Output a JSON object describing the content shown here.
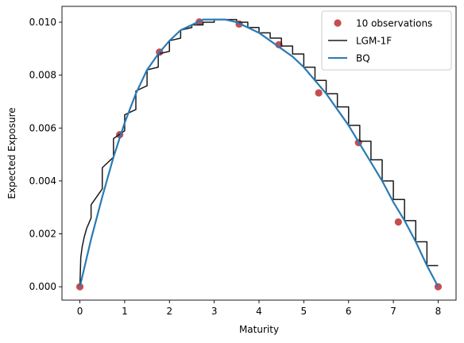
{
  "chart_data": {
    "type": "line",
    "xlabel": "Maturity",
    "ylabel": "Expected Exposure",
    "xlim": [
      -0.4,
      8.4
    ],
    "ylim": [
      -0.000505,
      0.0106
    ],
    "x_ticks": [
      0,
      1,
      2,
      3,
      4,
      5,
      6,
      7,
      8
    ],
    "x_tick_labels": [
      "0",
      "1",
      "2",
      "3",
      "4",
      "5",
      "6",
      "7",
      "8"
    ],
    "y_ticks": [
      0,
      0.002,
      0.004,
      0.006,
      0.008,
      0.01
    ],
    "y_tick_labels": [
      "0.000",
      "0.002",
      "0.004",
      "0.006",
      "0.008",
      "0.010"
    ],
    "grid": false,
    "legend_position": "top-right",
    "series": [
      {
        "name": "10 observations",
        "kind": "scatter",
        "color": "#c44e52",
        "x": [
          0.0,
          0.889,
          1.778,
          2.667,
          3.556,
          4.444,
          5.333,
          6.222,
          7.111,
          8.0
        ],
        "y": [
          0.0,
          0.00575,
          0.00887,
          0.01001,
          0.00993,
          0.00915,
          0.00733,
          0.00545,
          0.00245,
          0.0
        ]
      },
      {
        "name": "LGM-1F",
        "kind": "step",
        "color": "#1a1a1a",
        "x": [
          0.0,
          0.02,
          0.05,
          0.1,
          0.15,
          0.2,
          0.25,
          0.25,
          0.5,
          0.5,
          0.75,
          0.75,
          1.0,
          1.0,
          1.25,
          1.25,
          1.5,
          1.5,
          1.75,
          1.75,
          2.0,
          2.0,
          2.25,
          2.25,
          2.5,
          2.5,
          2.75,
          2.75,
          3.0,
          3.0,
          3.25,
          3.25,
          3.5,
          3.5,
          3.75,
          3.75,
          4.0,
          4.0,
          4.25,
          4.25,
          4.5,
          4.5,
          4.75,
          4.75,
          5.0,
          5.0,
          5.25,
          5.25,
          5.5,
          5.5,
          5.75,
          5.75,
          6.0,
          6.0,
          6.25,
          6.25,
          6.5,
          6.5,
          6.75,
          6.75,
          7.0,
          7.0,
          7.25,
          7.25,
          7.5,
          7.5,
          7.75,
          7.75,
          8.0
        ],
        "y": [
          0.0,
          0.0011,
          0.0015,
          0.0019,
          0.0022,
          0.0024,
          0.0026,
          0.0031,
          0.0037,
          0.0045,
          0.0049,
          0.0056,
          0.0059,
          0.0065,
          0.0067,
          0.0074,
          0.0076,
          0.0082,
          0.0083,
          0.0088,
          0.0089,
          0.0093,
          0.0094,
          0.0097,
          0.0098,
          0.0099,
          0.0099,
          0.01,
          0.01,
          0.0101,
          0.0101,
          0.0101,
          0.0101,
          0.01,
          0.01,
          0.0098,
          0.0098,
          0.0096,
          0.0096,
          0.0094,
          0.0094,
          0.0091,
          0.0091,
          0.0088,
          0.0088,
          0.0083,
          0.0083,
          0.0078,
          0.0078,
          0.0073,
          0.0073,
          0.0068,
          0.0068,
          0.0061,
          0.0061,
          0.0055,
          0.0055,
          0.0048,
          0.0048,
          0.004,
          0.004,
          0.0033,
          0.0033,
          0.0025,
          0.0025,
          0.0017,
          0.0017,
          0.0008,
          0.0008
        ]
      },
      {
        "name": "BQ",
        "kind": "line",
        "color": "#2a7ab5",
        "x": [
          0.0,
          0.25,
          0.5,
          0.75,
          1.0,
          1.25,
          1.5,
          1.75,
          2.0,
          2.25,
          2.5,
          2.75,
          3.0,
          3.25,
          3.5,
          3.75,
          4.0,
          4.25,
          4.5,
          4.75,
          5.0,
          5.25,
          5.5,
          5.75,
          6.0,
          6.25,
          6.5,
          6.75,
          7.0,
          7.25,
          7.5,
          7.75,
          8.0
        ],
        "y": [
          0.0,
          0.0018,
          0.0034,
          0.0049,
          0.0062,
          0.0073,
          0.0082,
          0.0088,
          0.0093,
          0.0097,
          0.0099,
          0.0101,
          0.0101,
          0.0101,
          0.01,
          0.0098,
          0.0096,
          0.0093,
          0.009,
          0.0087,
          0.0083,
          0.0078,
          0.0073,
          0.0067,
          0.0061,
          0.0054,
          0.0047,
          0.004,
          0.0032,
          0.0025,
          0.0017,
          0.0008,
          0.0
        ]
      }
    ]
  }
}
